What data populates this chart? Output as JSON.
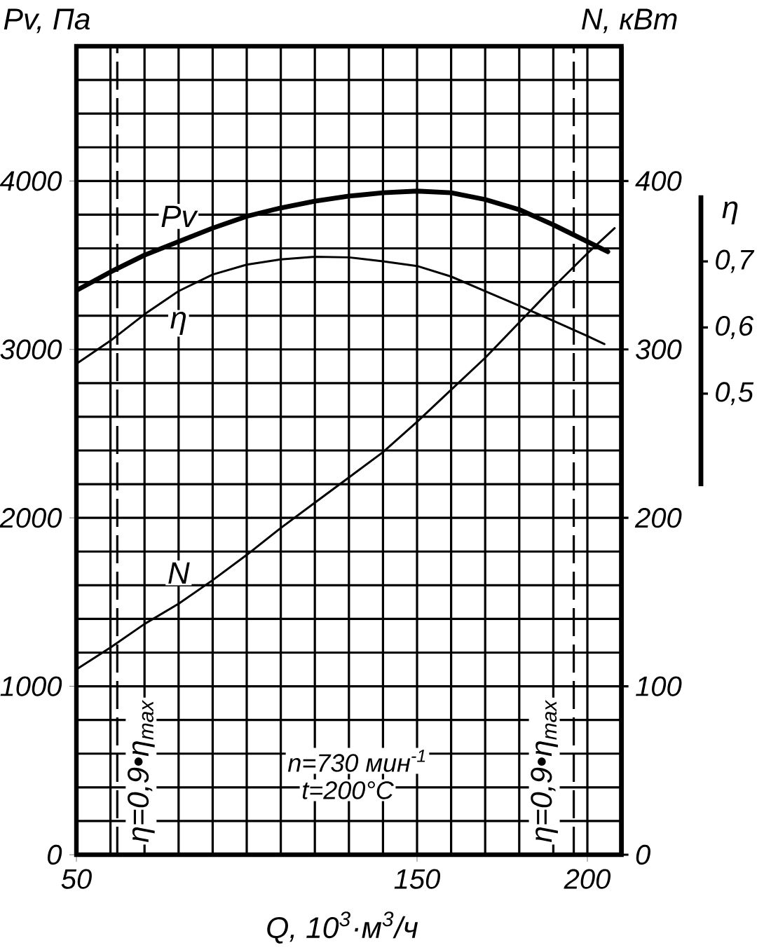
{
  "chart_data": {
    "type": "line",
    "xlabel": "Q, 10$^{3}$·м$^{3}$/ч",
    "ylabel": "Pv, Па",
    "y2label": "N, кВт",
    "y3label": "η",
    "xlim": [
      50,
      210
    ],
    "xticks": [
      50,
      {
        "value": 60,
        "label": null
      },
      {
        "value": 70,
        "label": null
      },
      {
        "value": 80,
        "label": null
      },
      {
        "value": 90,
        "label": null
      },
      {
        "value": 100,
        "label": null
      },
      {
        "value": 110,
        "label": null
      },
      {
        "value": 120,
        "label": null
      },
      {
        "value": 130,
        "label": null
      },
      {
        "value": 140,
        "label": null
      },
      150,
      {
        "value": 160,
        "label": null
      },
      {
        "value": 170,
        "label": null
      },
      {
        "value": 180,
        "label": null
      },
      {
        "value": 190,
        "label": null
      },
      200
    ],
    "ylim": [
      0,
      4800
    ],
    "yticks": [
      0,
      {
        "value": 200,
        "label": null
      },
      {
        "value": 400,
        "label": null
      },
      {
        "value": 600,
        "label": null
      },
      {
        "value": 800,
        "label": null
      },
      1000,
      {
        "value": 1200,
        "label": null
      },
      {
        "value": 1400,
        "label": null
      },
      {
        "value": 1600,
        "label": null
      },
      {
        "value": 1800,
        "label": null
      },
      2000,
      {
        "value": 2200,
        "label": null
      },
      {
        "value": 2400,
        "label": null
      },
      {
        "value": 2600,
        "label": null
      },
      {
        "value": 2800,
        "label": null
      },
      3000,
      {
        "value": 3200,
        "label": null
      },
      {
        "value": 3400,
        "label": null
      },
      {
        "value": 3600,
        "label": null
      },
      {
        "value": 3800,
        "label": null
      },
      4000,
      {
        "value": 4200,
        "label": null
      },
      {
        "value": 4400,
        "label": null
      },
      {
        "value": 4600,
        "label": null
      }
    ],
    "y2lim": [
      0,
      480
    ],
    "y2ticks": [
      0,
      100,
      200,
      300,
      400
    ],
    "y3lim": [
      0.36,
      0.8
    ],
    "y3ticks": [
      {
        "value": 0.5,
        "label": "0,5"
      },
      {
        "value": 0.6,
        "label": "0,6"
      },
      {
        "value": 0.7,
        "label": "0,7"
      }
    ],
    "grid": true,
    "line_style": "solid",
    "series": [
      {
        "name": "Pv",
        "color": "#000000",
        "x": [
          50,
          60,
          70,
          80,
          90,
          100,
          110,
          120,
          130,
          140,
          150,
          160,
          170,
          180,
          190,
          200,
          206
        ],
        "values": [
          3350,
          3460,
          3560,
          3640,
          3720,
          3790,
          3840,
          3880,
          3910,
          3930,
          3940,
          3930,
          3890,
          3830,
          3740,
          3640,
          3580
        ]
      },
      {
        "name": "η",
        "color": "#000000",
        "axis": "y3",
        "x": [
          50,
          60,
          70,
          80,
          90,
          100,
          110,
          120,
          130,
          140,
          150,
          160,
          170,
          180,
          190,
          200,
          205
        ],
        "values": [
          0.545,
          0.58,
          0.62,
          0.655,
          0.68,
          0.695,
          0.703,
          0.707,
          0.706,
          0.7,
          0.693,
          0.677,
          0.655,
          0.633,
          0.61,
          0.587,
          0.575
        ]
      },
      {
        "name": "N",
        "color": "#000000",
        "axis": "y2",
        "x": [
          50,
          60,
          70,
          80,
          90,
          100,
          110,
          120,
          130,
          140,
          150,
          160,
          170,
          180,
          190,
          200,
          208
        ],
        "values": [
          110,
          123,
          137,
          149,
          163,
          178,
          194,
          209,
          224,
          239,
          257,
          276,
          295,
          316,
          337,
          357,
          372
        ]
      }
    ],
    "ref_lines": [
      {
        "axis": "x",
        "value": 62,
        "color": "#000000",
        "line_style": "dashed"
      },
      {
        "axis": "x",
        "value": 196,
        "color": "#000000",
        "line_style": "dashed"
      }
    ],
    "annotations": [
      "n=730 мин$^{-1}$",
      "t=200°C",
      {
        "text": "η=0,9•η$_{max}$",
        "x": 62
      },
      {
        "text": "η=0,9•η$_{max}$",
        "x": 196
      }
    ]
  }
}
